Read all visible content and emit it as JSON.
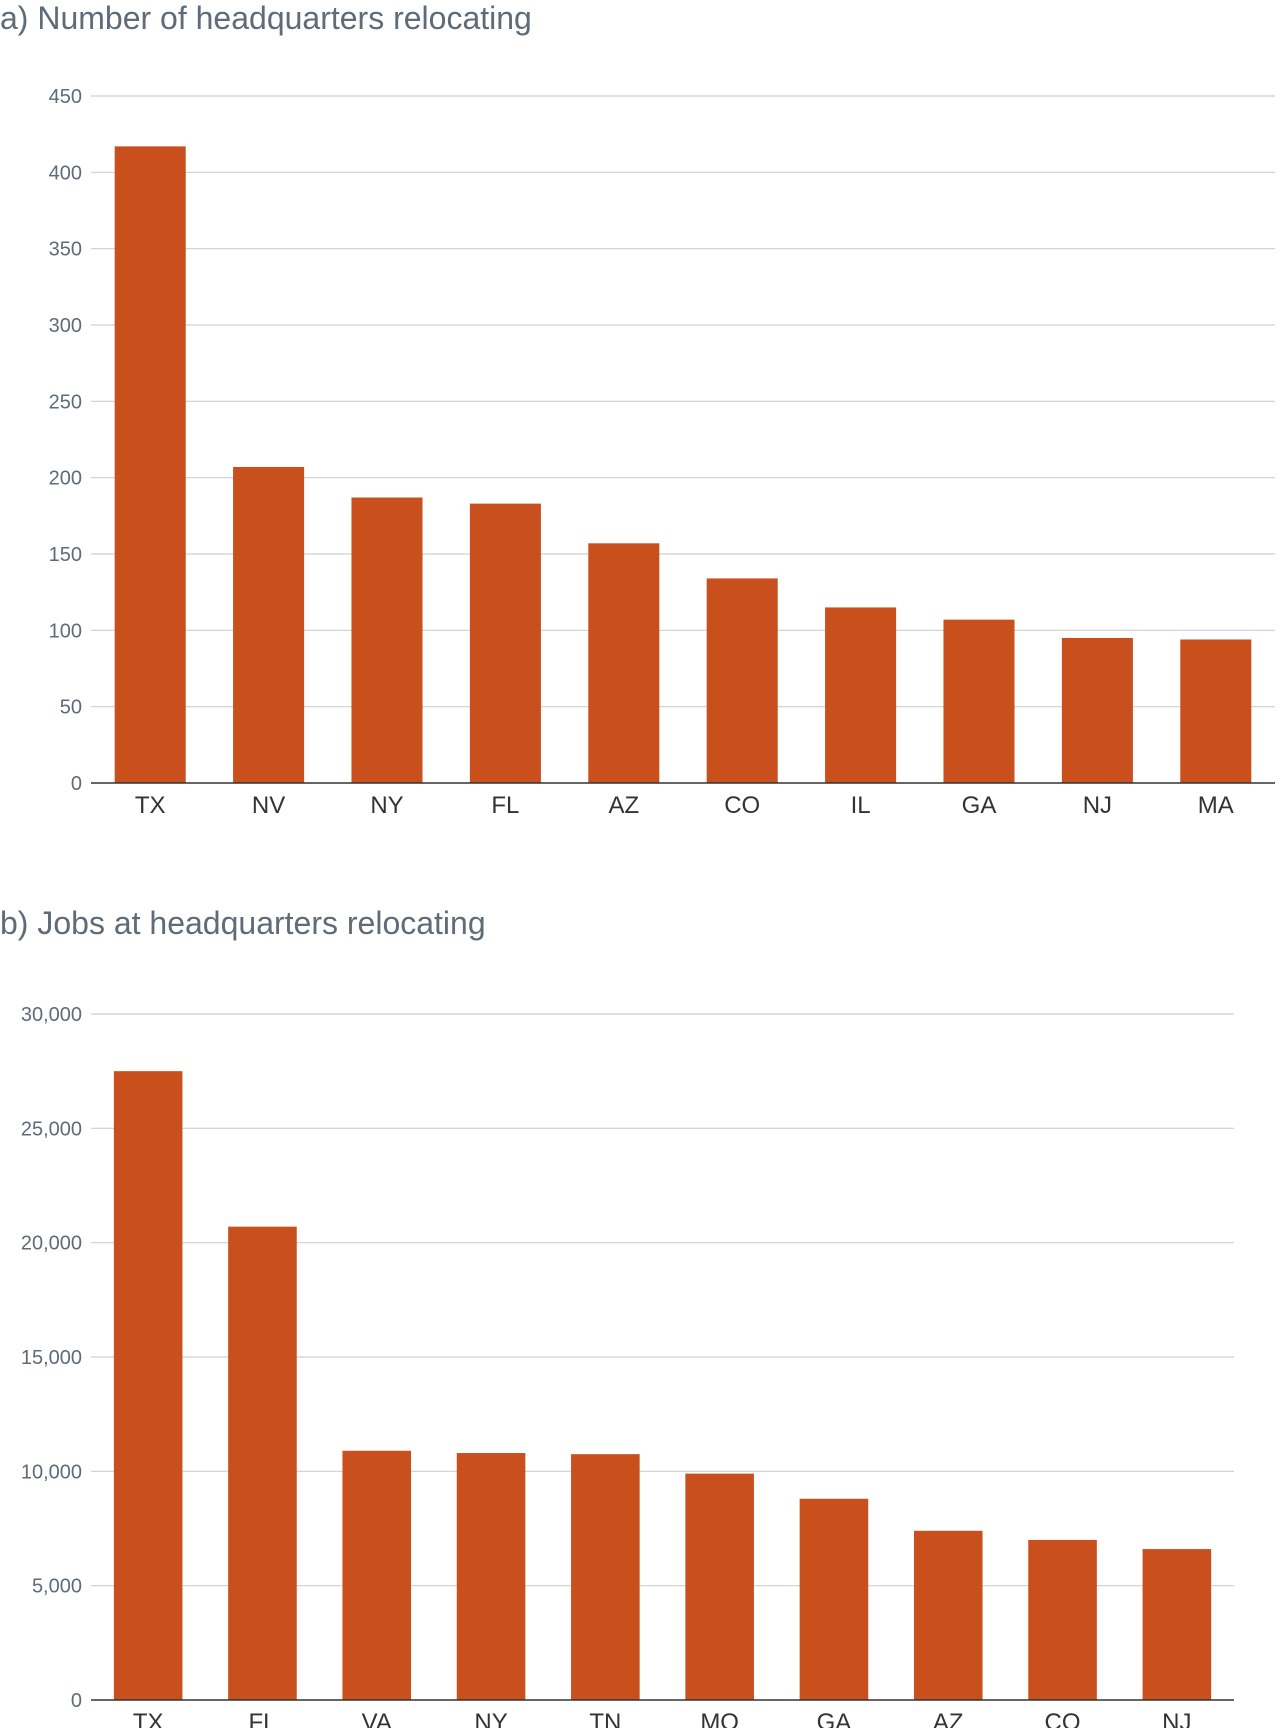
{
  "chart_data": [
    {
      "type": "bar",
      "title": "a) Number of headquarters relocating",
      "categories": [
        "TX",
        "NV",
        "NY",
        "FL",
        "AZ",
        "CO",
        "IL",
        "GA",
        "NJ",
        "MA"
      ],
      "values": [
        417,
        207,
        187,
        183,
        157,
        134,
        115,
        107,
        95,
        94
      ],
      "ylim": [
        0,
        450
      ],
      "yticks": [
        0,
        50,
        100,
        150,
        200,
        250,
        300,
        350,
        400,
        450
      ],
      "ytick_labels": [
        "0",
        "50",
        "100",
        "150",
        "200",
        "250",
        "300",
        "350",
        "400",
        "450"
      ],
      "grid": true,
      "bar_color": "#c94f1d"
    },
    {
      "type": "bar",
      "title": "b) Jobs at headquarters relocating",
      "categories": [
        "TX",
        "FL",
        "VA",
        "NY",
        "TN",
        "MO",
        "GA",
        "AZ",
        "CO",
        "NJ"
      ],
      "values": [
        27500,
        20700,
        10900,
        10800,
        10750,
        9900,
        8800,
        7400,
        7000,
        6600
      ],
      "ylim": [
        0,
        30000
      ],
      "yticks": [
        0,
        5000,
        10000,
        15000,
        20000,
        25000,
        30000
      ],
      "ytick_labels": [
        "0",
        "5,000",
        "10,000",
        "15,000",
        "20,000",
        "25,000",
        "30,000"
      ],
      "grid": true,
      "bar_color": "#c94f1d"
    }
  ]
}
